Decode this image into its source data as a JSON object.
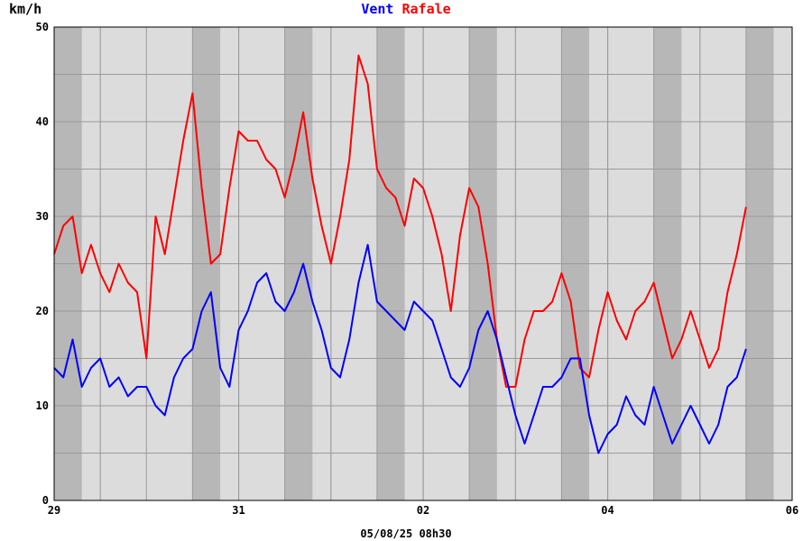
{
  "chart_data": {
    "type": "line",
    "ylabel": "km/h",
    "legend": "top-center",
    "grid": true,
    "ylim": [
      0,
      50
    ],
    "xlim": [
      0,
      8
    ],
    "y_ticks": [
      0,
      10,
      20,
      30,
      40,
      50
    ],
    "x_ticks": [
      {
        "x": 0,
        "label": "29"
      },
      {
        "x": 2,
        "label": "31"
      },
      {
        "x": 4,
        "label": "02"
      },
      {
        "x": 6,
        "label": "04"
      },
      {
        "x": 8,
        "label": "06"
      }
    ],
    "footer": "05/08/25 08h30",
    "series": [
      {
        "name": "Vent",
        "color": "#0000ff",
        "x": [
          0.0,
          0.1,
          0.2,
          0.3,
          0.4,
          0.5,
          0.6,
          0.7,
          0.8,
          0.9,
          1.0,
          1.1,
          1.2,
          1.3,
          1.4,
          1.5,
          1.6,
          1.7,
          1.8,
          1.9,
          2.0,
          2.1,
          2.2,
          2.3,
          2.4,
          2.5,
          2.6,
          2.7,
          2.8,
          2.9,
          3.0,
          3.1,
          3.2,
          3.3,
          3.4,
          3.5,
          3.6,
          3.7,
          3.8,
          3.9,
          4.0,
          4.1,
          4.2,
          4.3,
          4.4,
          4.5,
          4.6,
          4.7,
          4.8,
          4.9,
          5.0,
          5.1,
          5.2,
          5.3,
          5.4,
          5.5,
          5.6,
          5.7,
          5.8,
          5.9,
          6.0,
          6.1,
          6.2,
          6.3,
          6.4,
          6.5,
          6.6,
          6.7,
          6.8,
          6.9,
          7.0,
          7.1,
          7.2,
          7.3,
          7.4,
          7.5
        ],
        "values": [
          14,
          13,
          17,
          12,
          14,
          15,
          12,
          13,
          11,
          12,
          12,
          10,
          9,
          13,
          15,
          16,
          20,
          22,
          14,
          12,
          18,
          20,
          23,
          24,
          21,
          20,
          22,
          25,
          21,
          18,
          14,
          13,
          17,
          23,
          27,
          21,
          20,
          19,
          18,
          21,
          20,
          19,
          16,
          13,
          12,
          14,
          18,
          20,
          17,
          13,
          9,
          6,
          9,
          12,
          12,
          13,
          15,
          15,
          9,
          5,
          7,
          8,
          11,
          9,
          8,
          12,
          9,
          6,
          8,
          10,
          8,
          6,
          8,
          12,
          13,
          16
        ]
      },
      {
        "name": "Rafale",
        "color": "#ff0000",
        "x": [
          0.0,
          0.1,
          0.2,
          0.3,
          0.4,
          0.5,
          0.6,
          0.7,
          0.8,
          0.9,
          1.0,
          1.1,
          1.2,
          1.3,
          1.4,
          1.5,
          1.6,
          1.7,
          1.8,
          1.9,
          2.0,
          2.1,
          2.2,
          2.3,
          2.4,
          2.5,
          2.6,
          2.7,
          2.8,
          2.9,
          3.0,
          3.1,
          3.2,
          3.3,
          3.4,
          3.5,
          3.6,
          3.7,
          3.8,
          3.9,
          4.0,
          4.1,
          4.2,
          4.3,
          4.4,
          4.5,
          4.6,
          4.7,
          4.8,
          4.9,
          5.0,
          5.1,
          5.2,
          5.3,
          5.4,
          5.5,
          5.6,
          5.7,
          5.8,
          5.9,
          6.0,
          6.1,
          6.2,
          6.3,
          6.4,
          6.5,
          6.6,
          6.7,
          6.8,
          6.9,
          7.0,
          7.1,
          7.2,
          7.3,
          7.4,
          7.5
        ],
        "values": [
          26,
          29,
          30,
          24,
          27,
          24,
          22,
          25,
          23,
          22,
          15,
          30,
          26,
          32,
          38,
          43,
          33,
          25,
          26,
          33,
          39,
          38,
          38,
          36,
          35,
          32,
          36,
          41,
          34,
          29,
          25,
          30,
          36,
          47,
          44,
          35,
          33,
          32,
          29,
          34,
          33,
          30,
          26,
          20,
          28,
          33,
          31,
          25,
          17,
          12,
          12,
          17,
          20,
          20,
          21,
          24,
          21,
          14,
          13,
          18,
          22,
          19,
          17,
          20,
          21,
          23,
          19,
          15,
          17,
          20,
          17,
          14,
          16,
          22,
          26,
          31
        ]
      }
    ]
  }
}
